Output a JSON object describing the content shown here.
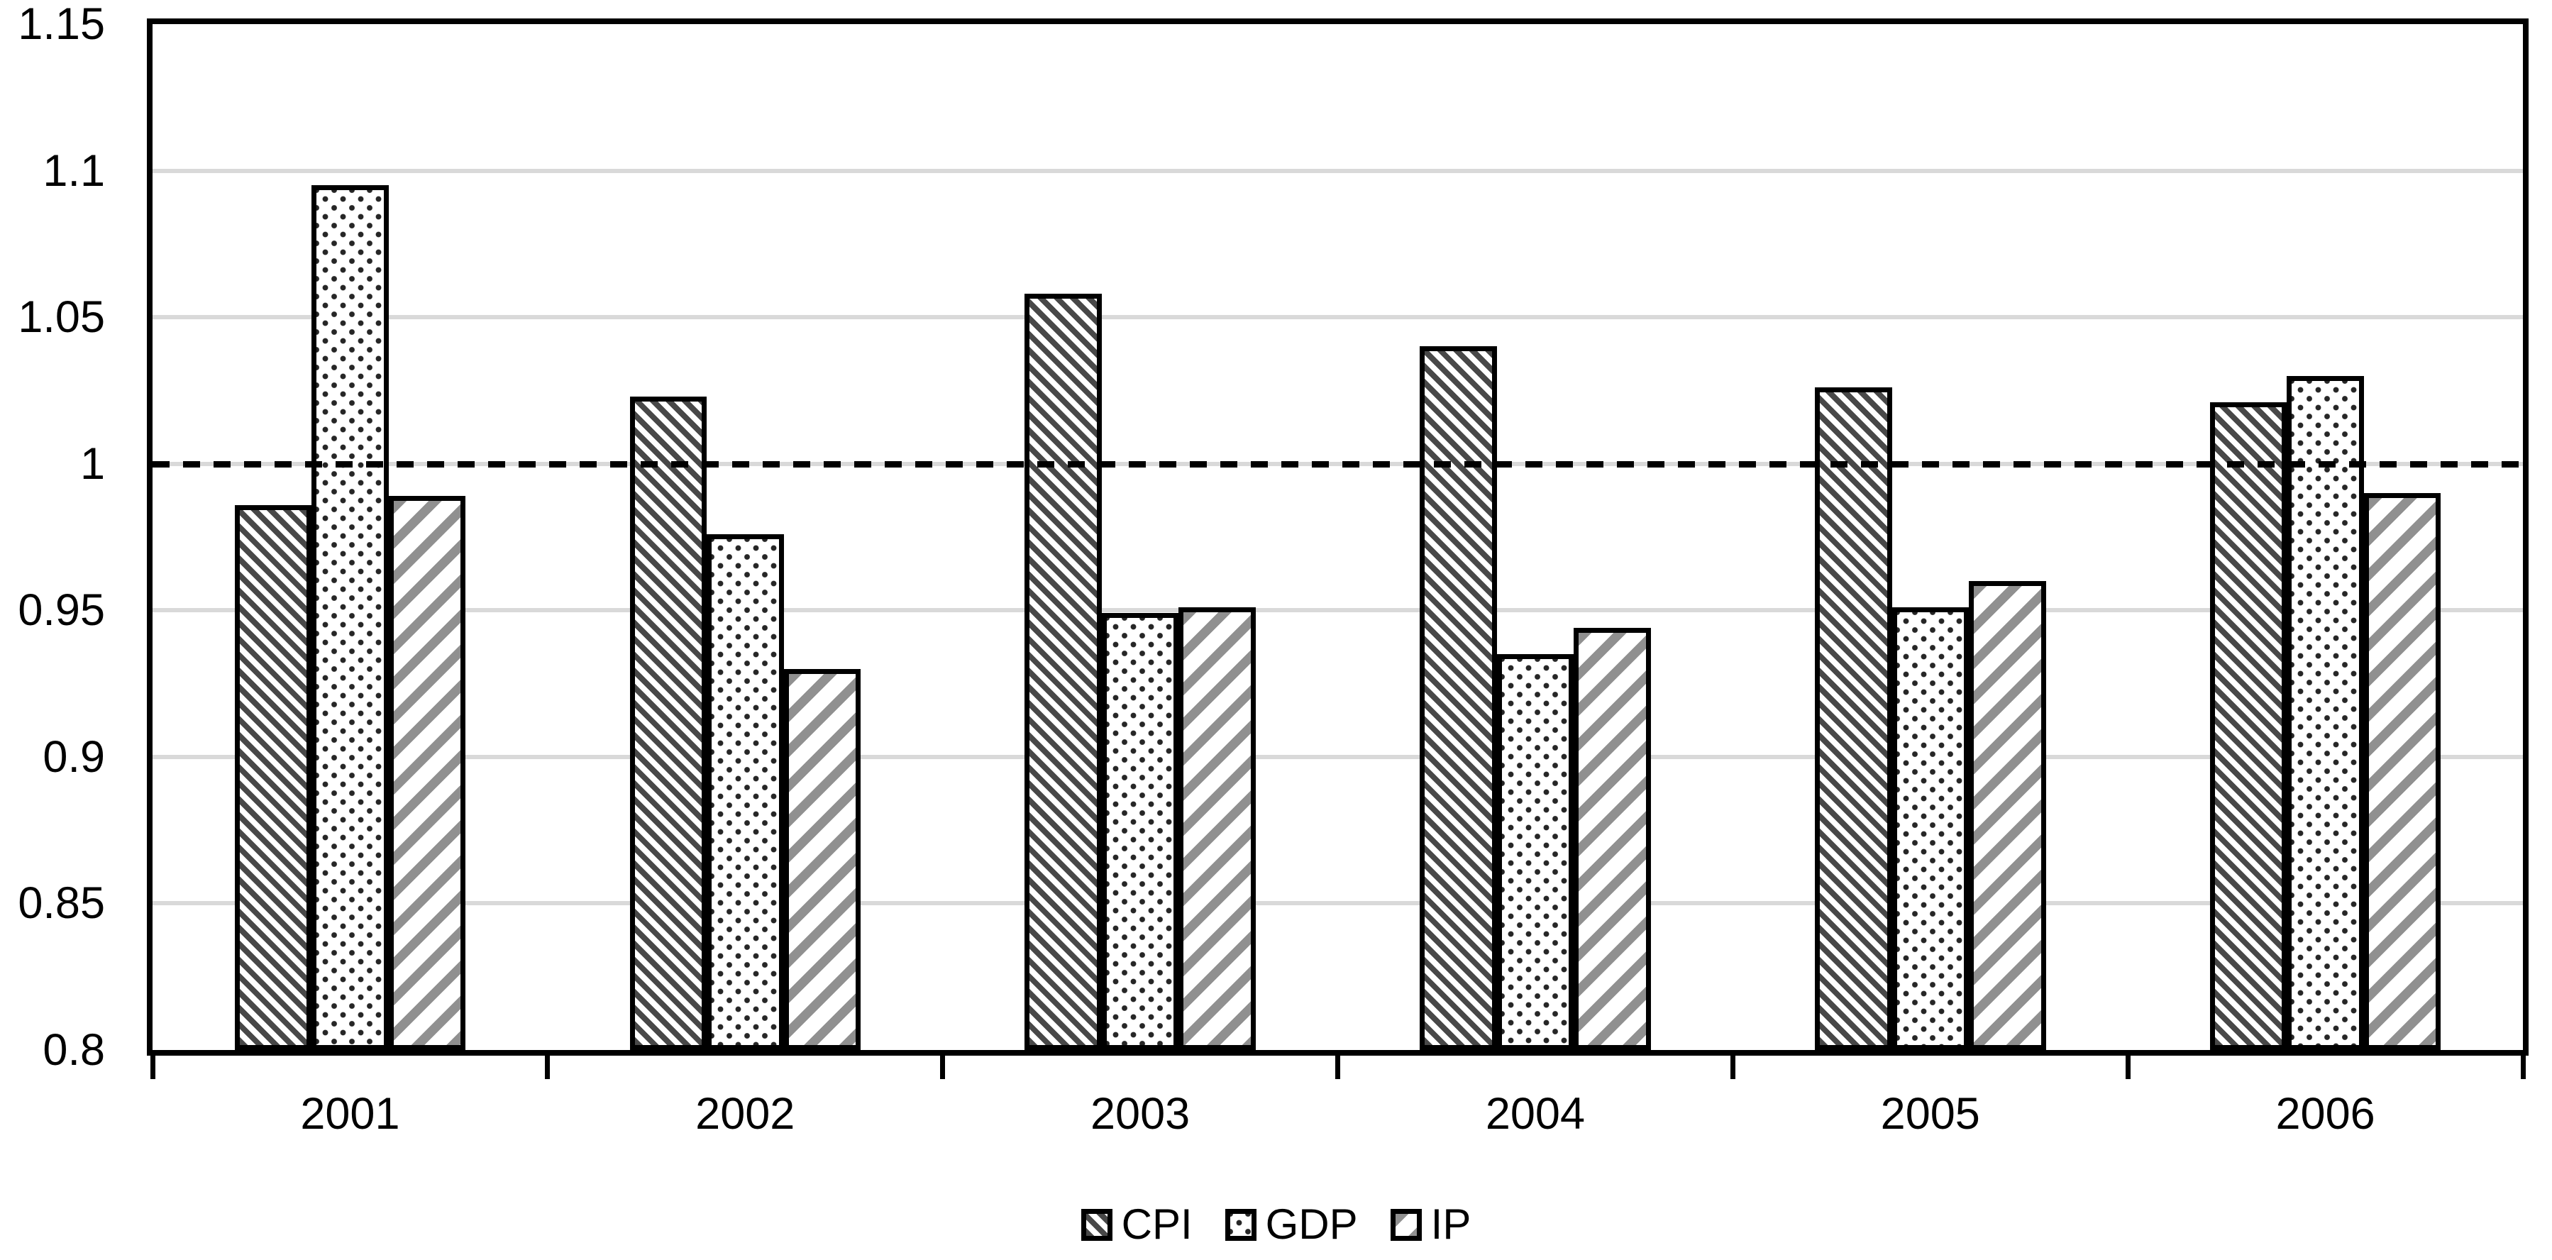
{
  "chart_data": {
    "type": "bar",
    "title": "",
    "categories": [
      "2001",
      "2002",
      "2003",
      "2004",
      "2005",
      "2006"
    ],
    "series": [
      {
        "name": "CPI",
        "pattern": "dark-diagonal-hatch-down",
        "values": [
          0.986,
          1.023,
          1.058,
          1.04,
          1.026,
          1.021
        ]
      },
      {
        "name": "GDP",
        "pattern": "black-dots",
        "values": [
          1.095,
          0.976,
          0.949,
          0.935,
          0.951,
          1.03
        ]
      },
      {
        "name": "IP",
        "pattern": "gray-diagonal-hatch-up",
        "values": [
          0.989,
          0.93,
          0.951,
          0.944,
          0.96,
          0.99
        ]
      }
    ],
    "reference_line": {
      "value": 1.0,
      "style": "dashed",
      "color": "#000000"
    },
    "y_axis": {
      "min": 0.8,
      "max": 1.15,
      "step": 0.05,
      "tick_labels": [
        "1.15",
        "1.1",
        "1.05",
        "1",
        "0.95",
        "0.9",
        "0.85",
        "0.8"
      ]
    },
    "legend": {
      "position": "bottom",
      "entries": [
        "CPI",
        "GDP",
        "IP"
      ]
    },
    "grid": true,
    "ylim": [
      0.8,
      1.15
    ],
    "colors": {
      "cpi_hatch": "#484848",
      "gdp_dot": "#262626",
      "ip_hatch": "#909090",
      "gridline": "#d9d9d9",
      "axis": "#000000",
      "background": "#ffffff"
    }
  }
}
